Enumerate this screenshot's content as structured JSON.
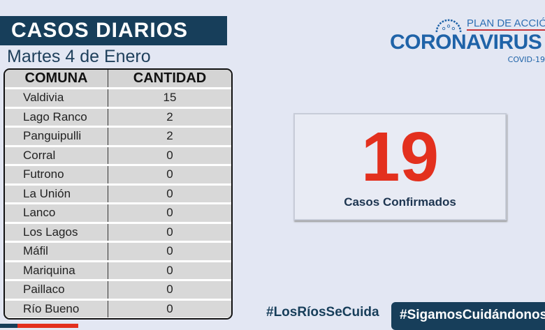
{
  "header": {
    "title": "CASOS DIARIOS",
    "date": "Martes 4 de Enero"
  },
  "table": {
    "headers": [
      "COMUNA",
      "CANTIDAD"
    ],
    "rows": [
      [
        "Valdivia",
        "15"
      ],
      [
        "Lago Ranco",
        "2"
      ],
      [
        "Panguipulli",
        "2"
      ],
      [
        "Corral",
        "0"
      ],
      [
        "Futrono",
        "0"
      ],
      [
        "La Unión",
        "0"
      ],
      [
        "Lanco",
        "0"
      ],
      [
        "Los Lagos",
        "0"
      ],
      [
        "Máfil",
        "0"
      ],
      [
        "Mariquina",
        "0"
      ],
      [
        "Paillaco",
        "0"
      ],
      [
        "Río Bueno",
        "0"
      ]
    ]
  },
  "logo": {
    "plan": "PLAN DE ACCIÓN",
    "name": "CORONAVIRUS",
    "sub": "COVID-19"
  },
  "summary": {
    "total": "19",
    "label": "Casos Confirmados"
  },
  "hashtags": [
    "#LosRíosSeCuida",
    "#SigamosCuidándonos"
  ],
  "colors": {
    "navy": "#173e5a",
    "red": "#e3301e",
    "blue": "#1f63a8"
  }
}
